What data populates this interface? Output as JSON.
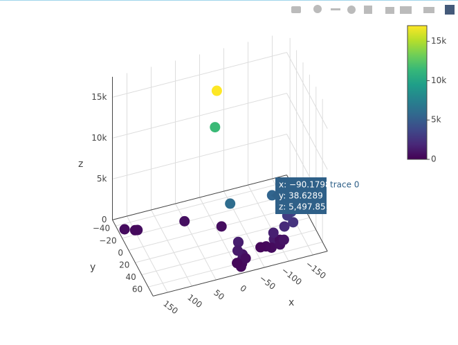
{
  "chart_data": {
    "type": "scatter3d",
    "series": [
      {
        "name": "trace 0",
        "x": [
          0,
          -5,
          -2,
          -90.1798,
          -125,
          -126,
          -118,
          171,
          149,
          152,
          56,
          -7,
          -92,
          -85,
          -100,
          -78,
          -95,
          -105,
          -88,
          -70,
          -9,
          -12,
          -5,
          -15,
          -19,
          -16,
          -20,
          -2,
          -110,
          -60,
          -8
        ],
        "y": [
          3,
          -10,
          41,
          38.6289,
          46,
          50,
          44,
          -26,
          -19,
          -22,
          -13,
          7,
          50,
          52,
          48,
          55,
          56,
          53,
          46,
          50,
          67,
          64,
          70,
          60,
          41,
          45,
          62,
          62,
          47,
          48,
          55
        ],
        "z": [
          17000,
          11500,
          6000,
          5497.85,
          3500,
          2500,
          3000,
          500,
          600,
          400,
          700,
          600,
          800,
          1200,
          600,
          500,
          700,
          900,
          1500,
          400,
          500,
          800,
          400,
          1000,
          1000,
          1400,
          600,
          300,
          2000,
          300,
          1200
        ]
      }
    ],
    "xlim": [
      -180,
      180
    ],
    "ylim": [
      -50,
      75
    ],
    "zlim": [
      0,
      17500
    ],
    "xticks": [
      {
        "value": -150,
        "label": "−150"
      },
      {
        "value": -100,
        "label": "−100"
      },
      {
        "value": -50,
        "label": "−50"
      },
      0,
      50,
      100,
      150
    ],
    "yticks": [
      {
        "value": -40,
        "label": "−40"
      },
      {
        "value": -20,
        "label": "−20"
      },
      0,
      20,
      40,
      60
    ],
    "zticks": [
      0,
      {
        "value": 5000,
        "label": "5k"
      },
      {
        "value": 10000,
        "label": "10k"
      },
      {
        "value": 15000,
        "label": "15k"
      }
    ],
    "xaxis_title": "x",
    "yaxis_title": "y",
    "zaxis_title": "z",
    "colorscale": [
      "#440154",
      "#482878",
      "#3e4989",
      "#31688e",
      "#26828e",
      "#1f9e89",
      "#35b779",
      "#6ece58",
      "#b5de2b",
      "#fde725"
    ],
    "cmin": 0,
    "cmax": 17000,
    "colorbar_ticks": [
      0,
      {
        "value": 5000,
        "label": "5k"
      },
      {
        "value": 10000,
        "label": "10k"
      },
      {
        "value": 15000,
        "label": "15k"
      }
    ],
    "hover": {
      "lines": [
        "x: −90.1798",
        "y: 38.6289",
        "z: 5,497.85"
      ]
    }
  }
}
